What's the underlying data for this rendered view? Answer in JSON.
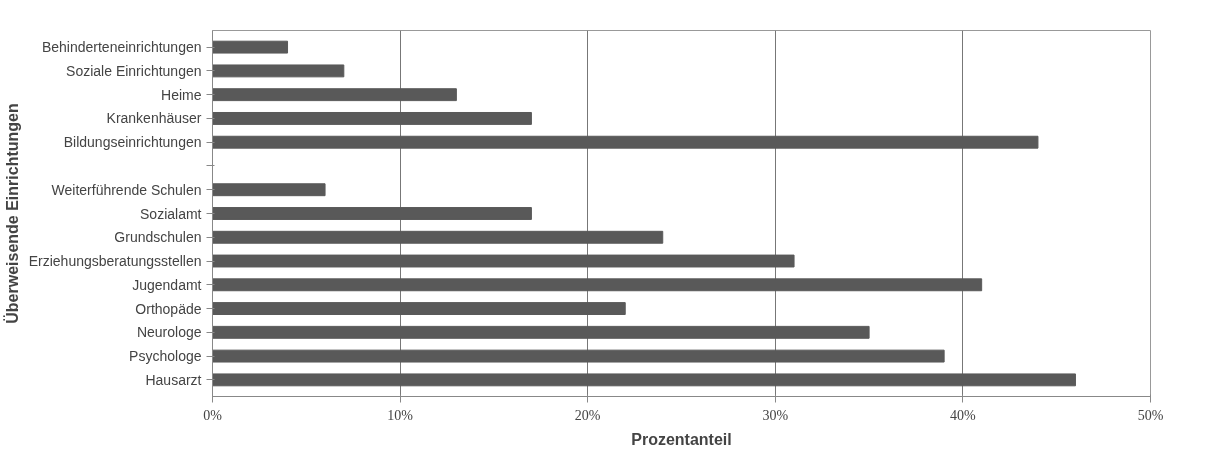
{
  "chart_data": {
    "type": "bar",
    "orientation": "horizontal",
    "xlabel": "Prozentanteil",
    "ylabel": "Überweisende Einrichtungen",
    "categories": [
      "Behinderteneinrichtungen",
      "Soziale Einrichtungen",
      "Heime",
      "Krankenhäuser",
      "Bildungseinrichtungen",
      null,
      "Weiterführende Schulen",
      "Sozialamt",
      "Grundschulen",
      "Erziehungsberatungsstellen",
      "Jugendamt",
      "Orthopäde",
      "Neurologe",
      "Psychologe",
      "Hausarzt"
    ],
    "values": [
      4,
      7,
      13,
      17,
      44,
      null,
      6,
      17,
      24,
      31,
      41,
      22,
      35,
      39,
      46
    ],
    "color": "#595959",
    "xlim": [
      0,
      50
    ],
    "xticks": [
      {
        "value": 0,
        "label": "0%"
      },
      {
        "value": 10,
        "label": "10%"
      },
      {
        "value": 20,
        "label": "20%"
      },
      {
        "value": 30,
        "label": "30%"
      },
      {
        "value": 40,
        "label": "40%"
      },
      {
        "value": 50,
        "label": "50%"
      }
    ],
    "grid": "x"
  }
}
